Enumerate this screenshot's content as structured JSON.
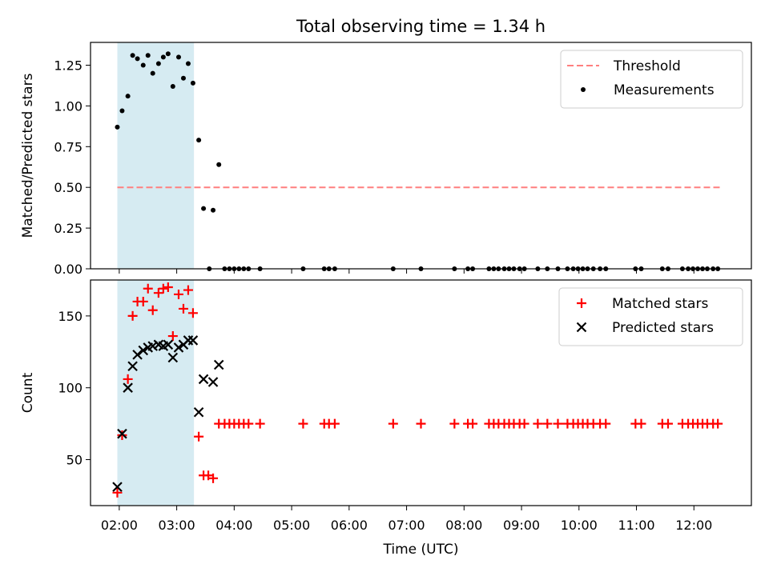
{
  "title": "Total observing time = 1.34 h",
  "x_axis": {
    "label": "Time (UTC)",
    "range": [
      "01:30",
      "13:00"
    ],
    "ticks": [
      "02:00",
      "03:00",
      "04:00",
      "05:00",
      "06:00",
      "07:00",
      "08:00",
      "09:00",
      "10:00",
      "11:00",
      "12:00"
    ]
  },
  "observing_window": {
    "start": "01:58",
    "end": "03:18",
    "color": "#add8e6"
  },
  "chart_data": [
    {
      "type": "scatter",
      "ylabel": "Matched/Predicted stars",
      "ylim": [
        0,
        1.39
      ],
      "yticks": [
        "0.00",
        "0.25",
        "0.50",
        "0.75",
        "1.00",
        "1.25"
      ],
      "legend": {
        "placement": "top-right",
        "entries": [
          "Threshold",
          "Measurements"
        ]
      },
      "threshold": {
        "name": "Threshold",
        "value": 0.5,
        "x_range": [
          "01:58",
          "12:28"
        ],
        "color": "#ff7f7f",
        "style": "dashed"
      },
      "series": [
        {
          "name": "Measurements",
          "color": "#000000",
          "marker": "dot",
          "points": [
            [
              "01:58",
              0.87
            ],
            [
              "02:03",
              0.97
            ],
            [
              "02:09",
              1.06
            ],
            [
              "02:14",
              1.31
            ],
            [
              "02:19",
              1.29
            ],
            [
              "02:25",
              1.25
            ],
            [
              "02:30",
              1.31
            ],
            [
              "02:35",
              1.2
            ],
            [
              "02:41",
              1.26
            ],
            [
              "02:46",
              1.3
            ],
            [
              "02:51",
              1.32
            ],
            [
              "02:56",
              1.12
            ],
            [
              "03:02",
              1.3
            ],
            [
              "03:07",
              1.17
            ],
            [
              "03:12",
              1.26
            ],
            [
              "03:17",
              1.14
            ],
            [
              "03:23",
              0.79
            ],
            [
              "03:28",
              0.37
            ],
            [
              "03:38",
              0.36
            ],
            [
              "03:44",
              0.64
            ],
            [
              "03:34",
              0.0
            ],
            [
              "03:50",
              0.0
            ],
            [
              "03:55",
              0.0
            ],
            [
              "04:00",
              0.0
            ],
            [
              "04:05",
              0.0
            ],
            [
              "04:10",
              0.0
            ],
            [
              "04:15",
              0.0
            ],
            [
              "04:27",
              0.0
            ],
            [
              "05:12",
              0.0
            ],
            [
              "05:34",
              0.0
            ],
            [
              "05:39",
              0.0
            ],
            [
              "05:45",
              0.0
            ],
            [
              "06:46",
              0.0
            ],
            [
              "07:15",
              0.0
            ],
            [
              "07:50",
              0.0
            ],
            [
              "08:04",
              0.0
            ],
            [
              "08:09",
              0.0
            ],
            [
              "08:26",
              0.0
            ],
            [
              "08:31",
              0.0
            ],
            [
              "08:36",
              0.0
            ],
            [
              "08:42",
              0.0
            ],
            [
              "08:47",
              0.0
            ],
            [
              "08:52",
              0.0
            ],
            [
              "08:58",
              0.0
            ],
            [
              "09:03",
              0.0
            ],
            [
              "09:17",
              0.0
            ],
            [
              "09:27",
              0.0
            ],
            [
              "09:38",
              0.0
            ],
            [
              "09:48",
              0.0
            ],
            [
              "09:54",
              0.0
            ],
            [
              "09:59",
              0.0
            ],
            [
              "10:04",
              0.0
            ],
            [
              "10:09",
              0.0
            ],
            [
              "10:15",
              0.0
            ],
            [
              "10:22",
              0.0
            ],
            [
              "10:28",
              0.0
            ],
            [
              "10:59",
              0.0
            ],
            [
              "11:05",
              0.0
            ],
            [
              "11:27",
              0.0
            ],
            [
              "11:33",
              0.0
            ],
            [
              "11:48",
              0.0
            ],
            [
              "11:54",
              0.0
            ],
            [
              "11:59",
              0.0
            ],
            [
              "12:04",
              0.0
            ],
            [
              "12:09",
              0.0
            ],
            [
              "12:14",
              0.0
            ],
            [
              "12:20",
              0.0
            ],
            [
              "12:25",
              0.0
            ]
          ]
        }
      ]
    },
    {
      "type": "scatter",
      "ylabel": "Count",
      "ylim": [
        18,
        175
      ],
      "yticks": [
        "50",
        "100",
        "150"
      ],
      "legend": {
        "placement": "top-right",
        "entries": [
          "Matched stars",
          "Predicted stars"
        ]
      },
      "series": [
        {
          "name": "Matched stars",
          "color": "#ff0000",
          "marker": "plus",
          "points": [
            [
              "01:58",
              27
            ],
            [
              "02:03",
              67
            ],
            [
              "02:09",
              106
            ],
            [
              "02:14",
              150
            ],
            [
              "02:19",
              160
            ],
            [
              "02:25",
              160
            ],
            [
              "02:30",
              169
            ],
            [
              "02:35",
              154
            ],
            [
              "02:41",
              166
            ],
            [
              "02:46",
              169
            ],
            [
              "02:51",
              170
            ],
            [
              "02:56",
              136
            ],
            [
              "03:02",
              165
            ],
            [
              "03:07",
              155
            ],
            [
              "03:12",
              168
            ],
            [
              "03:17",
              152
            ],
            [
              "03:23",
              66
            ],
            [
              "03:28",
              39
            ],
            [
              "03:33",
              39
            ],
            [
              "03:38",
              37
            ],
            [
              "03:44",
              75
            ],
            [
              "03:50",
              75
            ],
            [
              "03:55",
              75
            ],
            [
              "04:00",
              75
            ],
            [
              "04:05",
              75
            ],
            [
              "04:10",
              75
            ],
            [
              "04:15",
              75
            ],
            [
              "04:27",
              75
            ],
            [
              "05:12",
              75
            ],
            [
              "05:34",
              75
            ],
            [
              "05:39",
              75
            ],
            [
              "05:45",
              75
            ],
            [
              "06:46",
              75
            ],
            [
              "07:15",
              75
            ],
            [
              "07:50",
              75
            ],
            [
              "08:04",
              75
            ],
            [
              "08:09",
              75
            ],
            [
              "08:26",
              75
            ],
            [
              "08:31",
              75
            ],
            [
              "08:36",
              75
            ],
            [
              "08:42",
              75
            ],
            [
              "08:47",
              75
            ],
            [
              "08:52",
              75
            ],
            [
              "08:58",
              75
            ],
            [
              "09:03",
              75
            ],
            [
              "09:17",
              75
            ],
            [
              "09:27",
              75
            ],
            [
              "09:38",
              75
            ],
            [
              "09:48",
              75
            ],
            [
              "09:54",
              75
            ],
            [
              "09:59",
              75
            ],
            [
              "10:04",
              75
            ],
            [
              "10:09",
              75
            ],
            [
              "10:15",
              75
            ],
            [
              "10:22",
              75
            ],
            [
              "10:28",
              75
            ],
            [
              "10:59",
              75
            ],
            [
              "11:05",
              75
            ],
            [
              "11:27",
              75
            ],
            [
              "11:33",
              75
            ],
            [
              "11:48",
              75
            ],
            [
              "11:54",
              75
            ],
            [
              "11:59",
              75
            ],
            [
              "12:04",
              75
            ],
            [
              "12:09",
              75
            ],
            [
              "12:14",
              75
            ],
            [
              "12:20",
              75
            ],
            [
              "12:25",
              75
            ]
          ]
        },
        {
          "name": "Predicted stars",
          "color": "#000000",
          "marker": "x",
          "points": [
            [
              "01:58",
              31
            ],
            [
              "02:03",
              68
            ],
            [
              "02:09",
              100
            ],
            [
              "02:14",
              115
            ],
            [
              "02:19",
              123
            ],
            [
              "02:25",
              126
            ],
            [
              "02:30",
              128
            ],
            [
              "02:35",
              129
            ],
            [
              "02:41",
              130
            ],
            [
              "02:46",
              129
            ],
            [
              "02:51",
              130
            ],
            [
              "02:56",
              121
            ],
            [
              "03:02",
              128
            ],
            [
              "03:07",
              130
            ],
            [
              "03:12",
              133
            ],
            [
              "03:17",
              133
            ],
            [
              "03:23",
              83
            ],
            [
              "03:28",
              106
            ],
            [
              "03:38",
              104
            ],
            [
              "03:44",
              116
            ]
          ]
        }
      ]
    }
  ]
}
